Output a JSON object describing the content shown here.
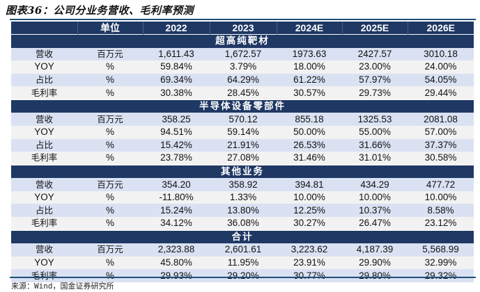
{
  "title": "图表36：公司分业务营收、毛利率预测",
  "header": {
    "blank": "",
    "unit": "单位",
    "years": [
      "2022",
      "2023",
      "2024E",
      "2025E",
      "2026E"
    ]
  },
  "sections": [
    {
      "name": "超高纯靶材",
      "rows": [
        {
          "label": "营收",
          "unit": "百万元",
          "values": [
            "1,611.43",
            "1,672.57",
            "1973.63",
            "2427.57",
            "3010.18"
          ]
        },
        {
          "label": "YOY",
          "unit": "%",
          "values": [
            "59.84%",
            "3.79%",
            "18.00%",
            "23.00%",
            "24.00%"
          ]
        },
        {
          "label": "占比",
          "unit": "%",
          "values": [
            "69.34%",
            "64.29%",
            "61.22%",
            "57.97%",
            "54.05%"
          ]
        },
        {
          "label": "毛利率",
          "unit": "%",
          "values": [
            "30.38%",
            "28.45%",
            "30.57%",
            "29.73%",
            "29.44%"
          ]
        }
      ]
    },
    {
      "name": "半导体设备零部件",
      "rows": [
        {
          "label": "营收",
          "unit": "百万元",
          "values": [
            "358.25",
            "570.12",
            "855.18",
            "1325.53",
            "2081.08"
          ]
        },
        {
          "label": "YOY",
          "unit": "%",
          "values": [
            "94.51%",
            "59.14%",
            "50.00%",
            "55.00%",
            "57.00%"
          ]
        },
        {
          "label": "占比",
          "unit": "%",
          "values": [
            "15.42%",
            "21.91%",
            "26.53%",
            "31.66%",
            "37.37%"
          ]
        },
        {
          "label": "毛利率",
          "unit": "%",
          "values": [
            "23.78%",
            "27.08%",
            "31.46%",
            "31.01%",
            "30.58%"
          ]
        }
      ]
    },
    {
      "name": "其他业务",
      "rows": [
        {
          "label": "营收",
          "unit": "百万元",
          "values": [
            "354.20",
            "358.92",
            "394.81",
            "434.29",
            "477.72"
          ]
        },
        {
          "label": "YOY",
          "unit": "%",
          "values": [
            "-11.80%",
            "1.33%",
            "10.00%",
            "10.00%",
            "10.00%"
          ]
        },
        {
          "label": "占比",
          "unit": "%",
          "values": [
            "15.24%",
            "13.80%",
            "12.25%",
            "10.37%",
            "8.58%"
          ]
        },
        {
          "label": "毛利率",
          "unit": "%",
          "values": [
            "34.12%",
            "36.08%",
            "30.27%",
            "26.47%",
            "23.12%"
          ]
        }
      ]
    },
    {
      "name": "合计",
      "rows": [
        {
          "label": "营收",
          "unit": "百万元",
          "values": [
            "2,323.88",
            "2,601.61",
            "3,223.62",
            "4,187.39",
            "5,568.99"
          ]
        },
        {
          "label": "YOY",
          "unit": "%",
          "values": [
            "45.80%",
            "11.95%",
            "23.91%",
            "29.90%",
            "32.99%"
          ]
        },
        {
          "label": "毛利率",
          "unit": "%",
          "values": [
            "29.93%",
            "29.20%",
            "30.77%",
            "29.80%",
            "29.32%"
          ]
        }
      ]
    }
  ],
  "source": "来源：Wind，国金证券研究所"
}
